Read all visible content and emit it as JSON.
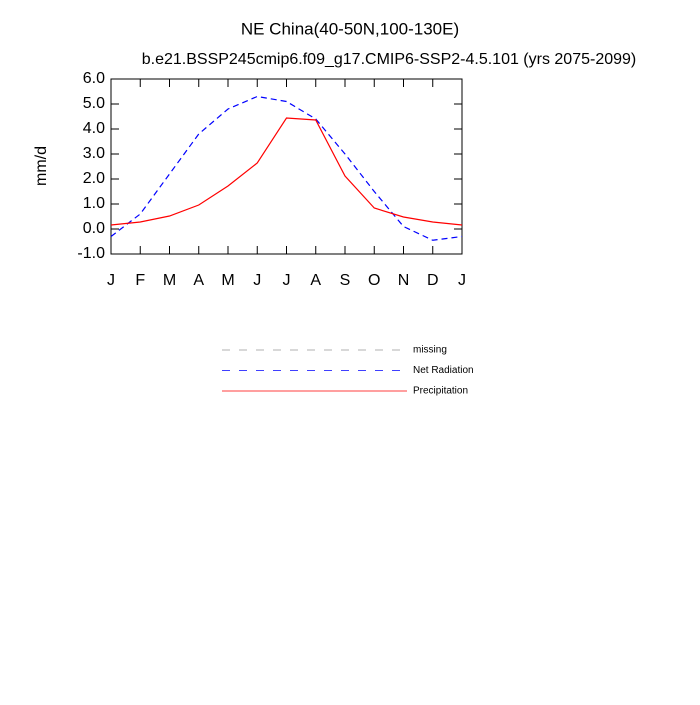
{
  "chart_data": {
    "type": "line",
    "title": "NE China(40-50N,100-130E)",
    "subtitle": "b.e21.BSSP245cmip6.f09_g17.CMIP6-SSP2-4.5.101 (yrs 2075-2099)",
    "y_label": "mm/d",
    "categories": [
      "J",
      "F",
      "M",
      "A",
      "M",
      "J",
      "J",
      "A",
      "S",
      "O",
      "N",
      "D",
      "J"
    ],
    "series": [
      {
        "name": "missing",
        "color": "#999999",
        "dashed": true,
        "values": [
          null,
          null,
          null,
          null,
          null,
          null,
          null,
          null,
          null,
          null,
          null,
          null,
          null
        ]
      },
      {
        "name": "Net Radiation",
        "color": "#0000ff",
        "dashed": true,
        "values": [
          -0.3,
          0.6,
          2.2,
          3.8,
          4.8,
          5.3,
          5.1,
          4.4,
          3.0,
          1.5,
          0.1,
          -0.45,
          -0.3
        ]
      },
      {
        "name": "Precipitation",
        "color": "#ff0000",
        "dashed": false,
        "values": [
          0.16,
          0.28,
          0.52,
          0.96,
          1.72,
          2.64,
          4.44,
          4.36,
          2.12,
          0.84,
          0.48,
          0.28,
          0.16
        ]
      }
    ],
    "ylim": [
      -1,
      6
    ],
    "yticks": [
      {
        "value": -1,
        "label": "-1.0"
      },
      {
        "value": 0,
        "label": "0.0"
      },
      {
        "value": 1,
        "label": "1.0"
      },
      {
        "value": 2,
        "label": "2.0"
      },
      {
        "value": 3,
        "label": "3.0"
      },
      {
        "value": 4,
        "label": "4.0"
      },
      {
        "value": 5,
        "label": "5.0"
      },
      {
        "value": 6,
        "label": "6.0"
      }
    ],
    "grid": false
  }
}
